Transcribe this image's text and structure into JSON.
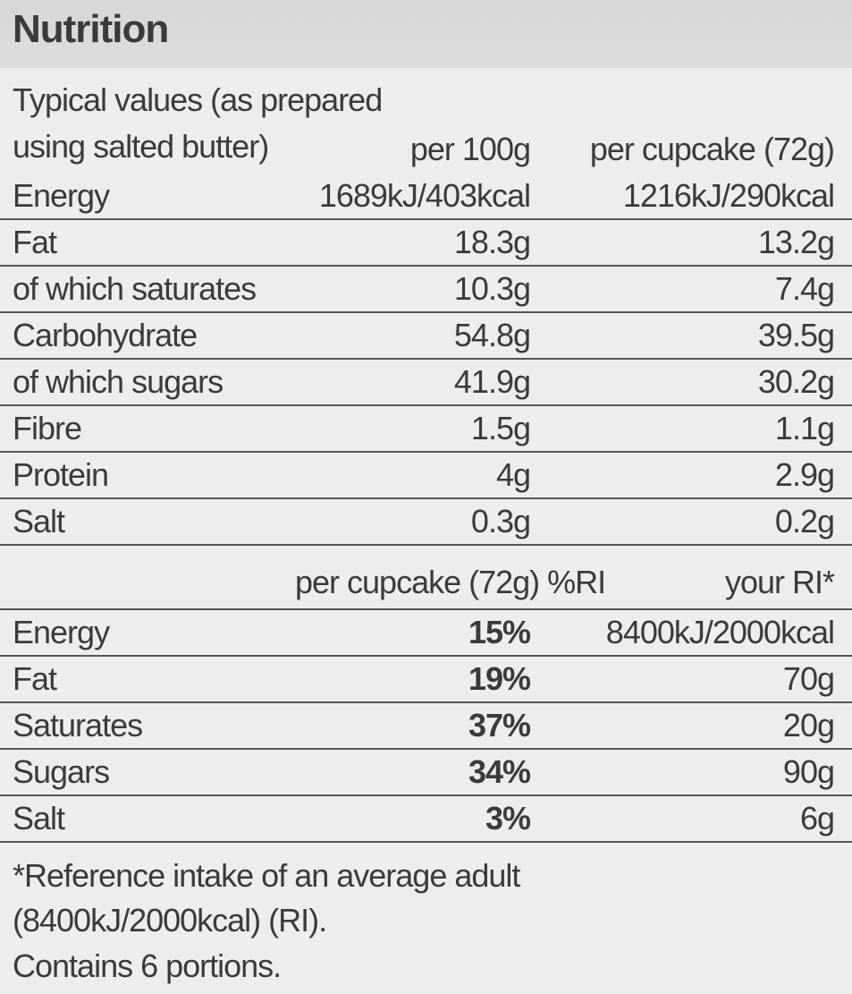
{
  "header": {
    "title": "Nutrition"
  },
  "table": {
    "columns": [
      "Typical values (as prepared using salted butter)",
      "per 100g",
      "per cupcake (72g)"
    ],
    "rows": [
      [
        "Energy",
        "1689kJ/403kcal",
        "1216kJ/290kcal"
      ],
      [
        "Fat",
        "18.3g",
        "13.2g"
      ],
      [
        "of which saturates",
        "10.3g",
        "7.4g"
      ],
      [
        "Carbohydrate",
        "54.8g",
        "39.5g"
      ],
      [
        "of which sugars",
        "41.9g",
        "30.2g"
      ],
      [
        "Fibre",
        "1.5g",
        "1.1g"
      ],
      [
        "Protein",
        "4g",
        "2.9g"
      ],
      [
        "Salt",
        "0.3g",
        "0.2g"
      ]
    ]
  },
  "ri_table": {
    "columns": [
      "per cupcake (72g) %RI",
      "your RI*"
    ],
    "rows": [
      [
        "Energy",
        "15%",
        "8400kJ/2000kcal"
      ],
      [
        "Fat",
        "19%",
        "70g"
      ],
      [
        "Saturates",
        "37%",
        "20g"
      ],
      [
        "Sugars",
        "34%",
        "90g"
      ],
      [
        "Salt",
        "3%",
        "6g"
      ]
    ]
  },
  "footer": {
    "note": "*Reference intake of an average adult (8400kJ/2000kcal) (RI).",
    "portions": "Contains 6 portions."
  }
}
